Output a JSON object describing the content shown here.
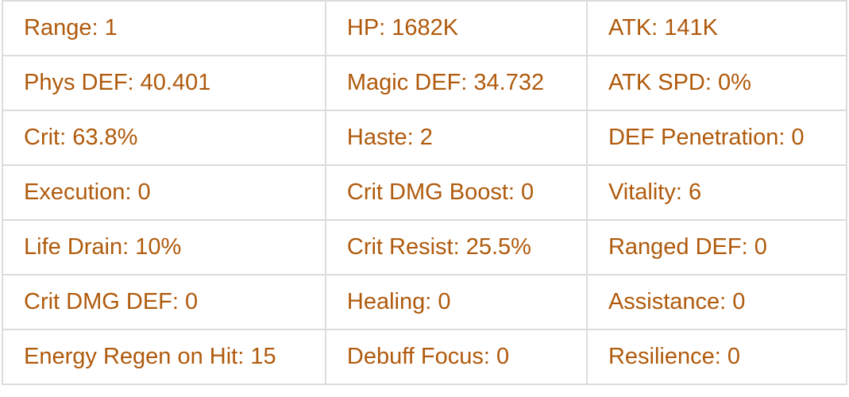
{
  "rows": [
    [
      "Range: 1",
      "HP: 1682K",
      "ATK: 141K"
    ],
    [
      "Phys DEF: 40.401",
      "Magic DEF: 34.732",
      "ATK SPD: 0%"
    ],
    [
      "Crit: 63.8%",
      "Haste: 2",
      "DEF Penetration: 0"
    ],
    [
      "Execution: 0",
      "Crit DMG Boost: 0",
      "Vitality: 6"
    ],
    [
      "Life Drain: 10%",
      "Crit Resist: 25.5%",
      "Ranged DEF: 0"
    ],
    [
      "Crit DMG DEF: 0",
      "Healing: 0",
      "Assistance: 0"
    ],
    [
      "Energy Regen on Hit: 15",
      "Debuff Focus: 0",
      "Resilience: 0"
    ]
  ],
  "colors": {
    "text": "#b05a0c",
    "border": "#dcdcdc"
  }
}
